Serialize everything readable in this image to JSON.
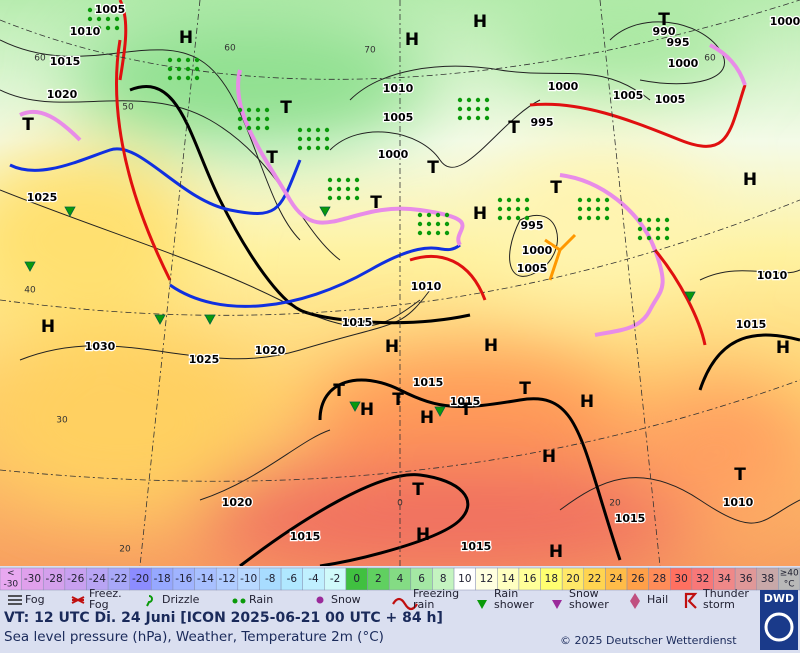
{
  "map": {
    "isobar_labels": [
      "1005",
      "1010",
      "1015",
      "1020",
      "1025",
      "1030",
      "1025",
      "1020",
      "1015",
      "1010",
      "1005",
      "1000",
      "1010",
      "1000",
      "1005",
      "1005",
      "1000",
      "995",
      "990",
      "995",
      "995",
      "1000",
      "1005",
      "1010",
      "1015",
      "1000",
      "1015",
      "1015",
      "1020",
      "1015",
      "1015",
      "1015",
      "1010"
    ],
    "systems": [
      "H",
      "H",
      "H",
      "T",
      "T",
      "T",
      "T",
      "H",
      "T",
      "T",
      "T",
      "H",
      "H",
      "H",
      "H",
      "H",
      "T",
      "H",
      "T",
      "H",
      "H",
      "T",
      "T",
      "H",
      "T",
      "H",
      "H",
      "T",
      "T"
    ],
    "temperature_labels": [
      "60",
      "60",
      "60",
      "50",
      "70",
      "40",
      "30",
      "20",
      "0",
      "20"
    ]
  },
  "legend": {
    "temperature_scale": [
      {
        "top": "<",
        "bottom": "-30",
        "color": "#e8a8f0"
      },
      {
        "label": "-30",
        "color": "#e0a0ec"
      },
      {
        "label": "-28",
        "color": "#d4a0ec"
      },
      {
        "label": "-26",
        "color": "#c8a0f0"
      },
      {
        "label": "-24",
        "color": "#b8a4f4"
      },
      {
        "label": "-22",
        "color": "#a8a8f8"
      },
      {
        "label": "-20",
        "color": "#8c8cff"
      },
      {
        "label": "-18",
        "color": "#96a8ff"
      },
      {
        "label": "-16",
        "color": "#a0b4ff"
      },
      {
        "label": "-14",
        "color": "#a8c0ff"
      },
      {
        "label": "-12",
        "color": "#b0ccff"
      },
      {
        "label": "-10",
        "color": "#b8d8ff"
      },
      {
        "label": "-8",
        "color": "#a8dcff"
      },
      {
        "label": "-6",
        "color": "#b0e8ff"
      },
      {
        "label": "-4",
        "color": "#c0f0ff"
      },
      {
        "label": "-2",
        "color": "#d0fafa"
      },
      {
        "label": "0",
        "color": "#40c040"
      },
      {
        "label": "2",
        "color": "#60d060"
      },
      {
        "label": "4",
        "color": "#84dc84"
      },
      {
        "label": "6",
        "color": "#a4e8a4"
      },
      {
        "label": "8",
        "color": "#c4f4c0"
      },
      {
        "label": "10",
        "color": "#ffffff"
      },
      {
        "label": "12",
        "color": "#ffffe0"
      },
      {
        "label": "14",
        "color": "#ffffc0"
      },
      {
        "label": "16",
        "color": "#ffff98"
      },
      {
        "label": "18",
        "color": "#ffff70"
      },
      {
        "label": "20",
        "color": "#ffe868"
      },
      {
        "label": "22",
        "color": "#ffd450"
      },
      {
        "label": "24",
        "color": "#ffbc48"
      },
      {
        "label": "26",
        "color": "#ffa048"
      },
      {
        "label": "28",
        "color": "#ff8c58"
      },
      {
        "label": "30",
        "color": "#ff7060"
      },
      {
        "label": "32",
        "color": "#f87878"
      },
      {
        "label": "34",
        "color": "#f08888"
      },
      {
        "label": "36",
        "color": "#e09898"
      },
      {
        "label": "38",
        "color": "#c8a8a8"
      },
      {
        "top": "≥40",
        "bottom": "°C",
        "color": "#b8b8b8"
      }
    ],
    "weather": [
      {
        "lines": [
          "Fog"
        ]
      },
      {
        "lines": [
          "Freez.",
          "Fog"
        ]
      },
      {
        "lines": [
          "Drizzle"
        ]
      },
      {
        "lines": [
          "Rain"
        ]
      },
      {
        "lines": [
          "Snow"
        ]
      },
      {
        "lines": [
          "Freezing",
          "rain"
        ]
      },
      {
        "lines": [
          "Rain",
          "shower"
        ]
      },
      {
        "lines": [
          "Snow",
          "shower"
        ]
      },
      {
        "lines": [
          "Hail"
        ]
      },
      {
        "lines": [
          "Thunder",
          "storm"
        ]
      }
    ]
  },
  "footer": {
    "valid_time": "VT: 12 UTC Di.  24 Juni [ICON 2025-06-21  00 UTC + 84 h]",
    "description": "Sea level pressure (hPa), Weather, Temperature 2m (°C)",
    "copyright": "© 2025 Deutscher Wetterdienst",
    "logo": "DWD"
  }
}
